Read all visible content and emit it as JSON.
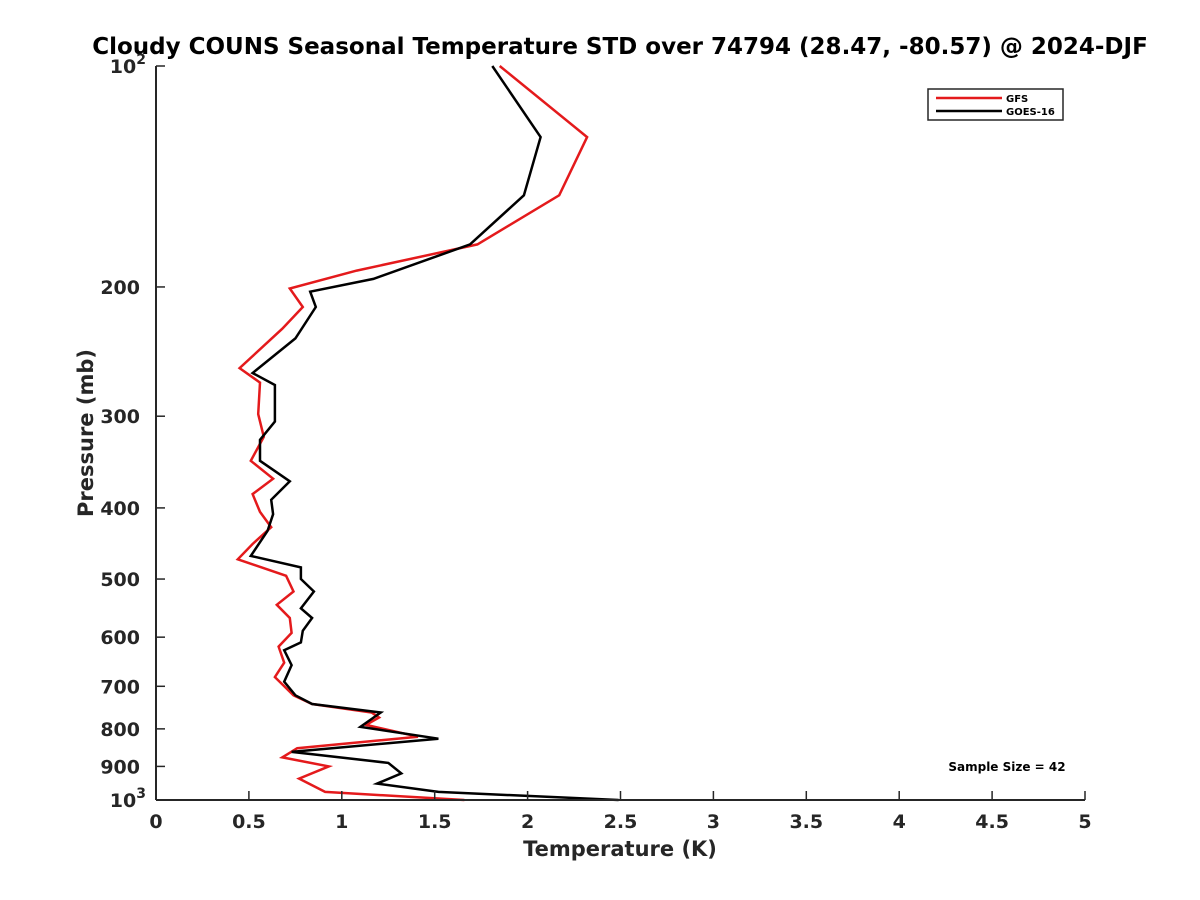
{
  "chart_data": {
    "type": "line",
    "title": "Cloudy COUNS Seasonal Temperature STD over 74794 (28.47, -80.57) @ 2024-DJF",
    "xlabel": "Temperature (K)",
    "ylabel": "Pressure (mb)",
    "xlim": [
      0,
      5
    ],
    "ylim": [
      100,
      1000
    ],
    "yscale": "log",
    "y_reversed": true,
    "grid": false,
    "legend_position": "top-right",
    "x_ticks": [
      {
        "value": 0,
        "label": "0"
      },
      {
        "value": 0.5,
        "label": "0.5"
      },
      {
        "value": 1,
        "label": "1"
      },
      {
        "value": 1.5,
        "label": "1.5"
      },
      {
        "value": 2,
        "label": "2"
      },
      {
        "value": 2.5,
        "label": "2.5"
      },
      {
        "value": 3,
        "label": "3"
      },
      {
        "value": 3.5,
        "label": "3.5"
      },
      {
        "value": 4,
        "label": "4"
      },
      {
        "value": 4.5,
        "label": "4.5"
      },
      {
        "value": 5,
        "label": "5"
      }
    ],
    "y_ticks": [
      {
        "value": 100,
        "base": "10",
        "exp": "2"
      },
      {
        "value": 200,
        "label": "200"
      },
      {
        "value": 300,
        "label": "300"
      },
      {
        "value": 400,
        "label": "400"
      },
      {
        "value": 500,
        "label": "500"
      },
      {
        "value": 600,
        "label": "600"
      },
      {
        "value": 700,
        "label": "700"
      },
      {
        "value": 800,
        "label": "800"
      },
      {
        "value": 900,
        "label": "900"
      },
      {
        "value": 1000,
        "base": "10",
        "exp": "3"
      }
    ],
    "series": [
      {
        "name": "GFS",
        "color": "#e41a1c",
        "points": [
          {
            "x": 1.85,
            "y": 100
          },
          {
            "x": 2.32,
            "y": 125
          },
          {
            "x": 2.17,
            "y": 150
          },
          {
            "x": 1.73,
            "y": 175
          },
          {
            "x": 1.08,
            "y": 190
          },
          {
            "x": 0.72,
            "y": 201
          },
          {
            "x": 0.79,
            "y": 213
          },
          {
            "x": 0.68,
            "y": 228
          },
          {
            "x": 0.45,
            "y": 258
          },
          {
            "x": 0.56,
            "y": 270
          },
          {
            "x": 0.55,
            "y": 298
          },
          {
            "x": 0.58,
            "y": 320
          },
          {
            "x": 0.51,
            "y": 345
          },
          {
            "x": 0.63,
            "y": 365
          },
          {
            "x": 0.52,
            "y": 383
          },
          {
            "x": 0.56,
            "y": 405
          },
          {
            "x": 0.62,
            "y": 425
          },
          {
            "x": 0.52,
            "y": 448
          },
          {
            "x": 0.44,
            "y": 470
          },
          {
            "x": 0.7,
            "y": 495
          },
          {
            "x": 0.74,
            "y": 520
          },
          {
            "x": 0.65,
            "y": 542
          },
          {
            "x": 0.72,
            "y": 565
          },
          {
            "x": 0.73,
            "y": 592
          },
          {
            "x": 0.66,
            "y": 618
          },
          {
            "x": 0.69,
            "y": 650
          },
          {
            "x": 0.64,
            "y": 680
          },
          {
            "x": 0.74,
            "y": 720
          },
          {
            "x": 0.84,
            "y": 740
          },
          {
            "x": 1.16,
            "y": 760
          },
          {
            "x": 1.2,
            "y": 772
          },
          {
            "x": 1.13,
            "y": 790
          },
          {
            "x": 1.41,
            "y": 820
          },
          {
            "x": 0.76,
            "y": 850
          },
          {
            "x": 0.68,
            "y": 875
          },
          {
            "x": 0.93,
            "y": 900
          },
          {
            "x": 0.77,
            "y": 935
          },
          {
            "x": 0.91,
            "y": 975
          },
          {
            "x": 1.66,
            "y": 1000
          }
        ]
      },
      {
        "name": "GOES-16",
        "color": "#000000",
        "points": [
          {
            "x": 1.81,
            "y": 100
          },
          {
            "x": 2.07,
            "y": 125
          },
          {
            "x": 1.98,
            "y": 150
          },
          {
            "x": 1.69,
            "y": 175
          },
          {
            "x": 1.17,
            "y": 195
          },
          {
            "x": 0.83,
            "y": 203
          },
          {
            "x": 0.86,
            "y": 213
          },
          {
            "x": 0.75,
            "y": 235
          },
          {
            "x": 0.52,
            "y": 262
          },
          {
            "x": 0.64,
            "y": 272
          },
          {
            "x": 0.64,
            "y": 305
          },
          {
            "x": 0.56,
            "y": 323
          },
          {
            "x": 0.56,
            "y": 345
          },
          {
            "x": 0.72,
            "y": 368
          },
          {
            "x": 0.62,
            "y": 390
          },
          {
            "x": 0.63,
            "y": 408
          },
          {
            "x": 0.6,
            "y": 430
          },
          {
            "x": 0.51,
            "y": 465
          },
          {
            "x": 0.78,
            "y": 482
          },
          {
            "x": 0.78,
            "y": 500
          },
          {
            "x": 0.85,
            "y": 520
          },
          {
            "x": 0.78,
            "y": 548
          },
          {
            "x": 0.84,
            "y": 565
          },
          {
            "x": 0.79,
            "y": 588
          },
          {
            "x": 0.78,
            "y": 610
          },
          {
            "x": 0.69,
            "y": 625
          },
          {
            "x": 0.73,
            "y": 655
          },
          {
            "x": 0.69,
            "y": 690
          },
          {
            "x": 0.75,
            "y": 720
          },
          {
            "x": 0.84,
            "y": 740
          },
          {
            "x": 1.21,
            "y": 760
          },
          {
            "x": 1.1,
            "y": 795
          },
          {
            "x": 1.52,
            "y": 825
          },
          {
            "x": 0.73,
            "y": 860
          },
          {
            "x": 1.25,
            "y": 890
          },
          {
            "x": 1.32,
            "y": 920
          },
          {
            "x": 1.19,
            "y": 950
          },
          {
            "x": 1.52,
            "y": 975
          },
          {
            "x": 2.49,
            "y": 1000
          }
        ]
      }
    ],
    "annotations": [
      {
        "text": "Sample Size = 42",
        "position": "bottom-right"
      }
    ]
  }
}
